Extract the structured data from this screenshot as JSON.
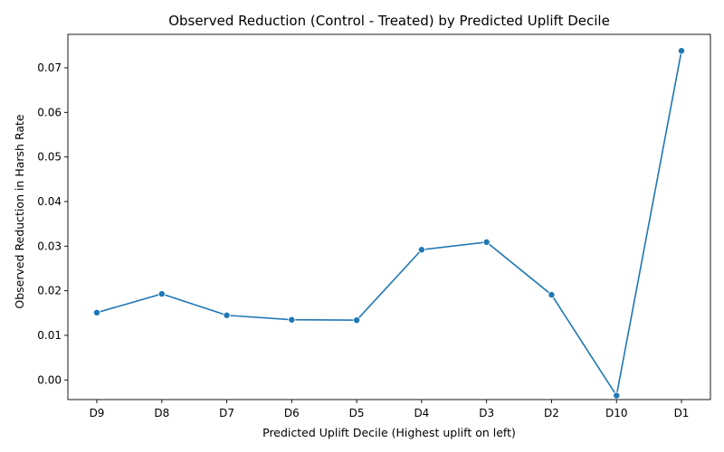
{
  "chart_data": {
    "type": "line",
    "title": "Observed Reduction (Control - Treated) by Predicted Uplift Decile",
    "xlabel": "Predicted Uplift Decile (Highest uplift on left)",
    "ylabel": "Observed Reduction in Harsh Rate",
    "categories": [
      "D9",
      "D8",
      "D7",
      "D6",
      "D5",
      "D4",
      "D3",
      "D2",
      "D10",
      "D1"
    ],
    "series": [
      {
        "values": [
          0.0151,
          0.0193,
          0.0145,
          0.0135,
          0.0134,
          0.0292,
          0.0309,
          0.0191,
          -0.0035,
          0.0738
        ],
        "color": "#1f77b4",
        "marker": "circle"
      }
    ],
    "ylim": [
      -0.0044,
      0.0775
    ],
    "yticks": [
      0.0,
      0.01,
      0.02,
      0.03,
      0.04,
      0.05,
      0.06,
      0.07
    ],
    "ytick_labels": [
      "0.00",
      "0.01",
      "0.02",
      "0.03",
      "0.04",
      "0.05",
      "0.06",
      "0.07"
    ],
    "grid": false,
    "legend": "none"
  }
}
